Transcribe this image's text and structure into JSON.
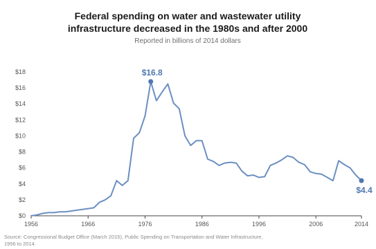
{
  "chart_data": {
    "type": "line",
    "title_line1": "Federal spending on water and wastewater utility",
    "title_line2": "infrastructure decreased in the 1980s and after 2000",
    "subtitle": "Reported in billions of 2014 dollars",
    "source_line1": "Source: Congressional Budget Office (March 2015), Public Spending on Transportation and Water Infrastructure,",
    "source_line2": "1956 to 2014.",
    "xlabel": "",
    "ylabel": "",
    "xlim": [
      1956,
      2014
    ],
    "ylim": [
      0,
      18
    ],
    "xticks": [
      1956,
      1966,
      1976,
      1986,
      1996,
      2006,
      2014
    ],
    "yticks": [
      0,
      2,
      4,
      6,
      8,
      10,
      12,
      14,
      16,
      18
    ],
    "ytick_labels": [
      "$0",
      "$2",
      "$4",
      "$6",
      "$8",
      "$10",
      "$12",
      "$14",
      "$16",
      "$18"
    ],
    "grid": false,
    "legend": "none",
    "line_color": "#6b8fc2",
    "marker_color": "#4f77b0",
    "annotation_color": "#4f77b0",
    "series": [
      {
        "x": [
          1956,
          1957,
          1958,
          1959,
          1960,
          1961,
          1962,
          1963,
          1964,
          1965,
          1966,
          1967,
          1968,
          1969,
          1970,
          1971,
          1972,
          1973,
          1974,
          1975,
          1976,
          1977,
          1978,
          1979,
          1980,
          1981,
          1982,
          1983,
          1984,
          1985,
          1986,
          1987,
          1988,
          1989,
          1990,
          1991,
          1992,
          1993,
          1994,
          1995,
          1996,
          1997,
          1998,
          1999,
          2000,
          2001,
          2002,
          2003,
          2004,
          2005,
          2006,
          2007,
          2008,
          2009,
          2010,
          2011,
          2012,
          2013,
          2014
        ],
        "values": [
          0.0,
          0.1,
          0.3,
          0.4,
          0.4,
          0.5,
          0.5,
          0.6,
          0.7,
          0.8,
          0.9,
          1.0,
          1.7,
          2.0,
          2.5,
          4.4,
          3.8,
          4.4,
          9.7,
          10.4,
          12.5,
          16.8,
          14.4,
          15.5,
          16.5,
          14.1,
          13.4,
          10.0,
          8.8,
          9.4,
          9.4,
          7.1,
          6.8,
          6.3,
          6.6,
          6.7,
          6.6,
          5.6,
          5.0,
          5.1,
          4.8,
          4.9,
          6.3,
          6.6,
          7.0,
          7.5,
          7.3,
          6.7,
          6.4,
          5.5,
          5.3,
          5.2,
          4.8,
          4.4,
          6.9,
          6.4,
          6.0,
          5.1,
          4.4
        ]
      }
    ],
    "annotations": [
      {
        "label": "$16.8",
        "x": 1977,
        "value": 16.8
      },
      {
        "label": "$4.4",
        "x": 2014,
        "value": 4.4
      }
    ]
  }
}
